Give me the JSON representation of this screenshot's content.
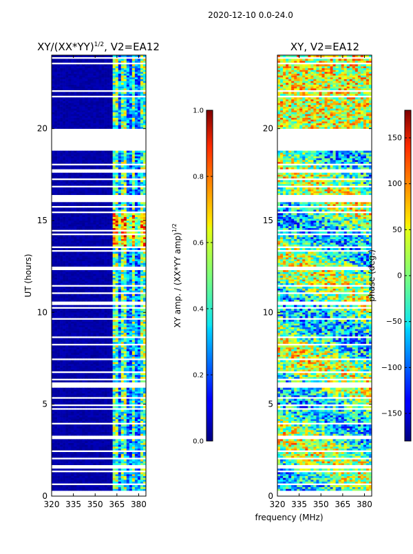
{
  "figure": {
    "suptitle": "2020-12-10 0.0-24.0",
    "xlabel": "frequency (MHz)"
  },
  "chart_data": [
    {
      "type": "heatmap",
      "title_main": "XY/(XX*YY)",
      "title_sup": "1/2",
      "title_tail": ", V2=EA12",
      "xlim": [
        320,
        385
      ],
      "xticks": [
        320,
        335,
        350,
        365,
        380
      ],
      "ylabel": "UT (hours)",
      "ylim": [
        0,
        24
      ],
      "yticks": [
        0,
        5,
        10,
        15,
        20
      ],
      "colorbar": {
        "label_main": "XY amp. / (XX*YY amp)",
        "label_sup": "1/2",
        "range": [
          0.0,
          1.0
        ],
        "ticks": [
          "0.0",
          "0.2",
          "0.4",
          "0.6",
          "0.8",
          "1.0"
        ],
        "tick_values": [
          0.0,
          0.2,
          0.4,
          0.6,
          0.8,
          1.0
        ]
      },
      "description": "Amplitude ratio near 0 below ~362 MHz; 0.2-0.7 in bands above 362 MHz; flagged rows are blank"
    },
    {
      "type": "heatmap",
      "title": "XY, V2=EA12",
      "xlim": [
        320,
        385
      ],
      "xticks": [
        320,
        335,
        350,
        365,
        380
      ],
      "ylim": [
        0,
        24
      ],
      "yticks": [
        0,
        5,
        10,
        15,
        20
      ],
      "colorbar": {
        "label": "phase (deg.)",
        "range": [
          -180,
          180
        ],
        "ticks": [
          "150",
          "100",
          "50",
          "0",
          "−50",
          "−100",
          "−150"
        ],
        "tick_values": [
          150,
          100,
          50,
          0,
          -50,
          -100,
          -150
        ]
      },
      "description": "Phase scattered across full range, mostly -50 to 100 deg"
    }
  ]
}
